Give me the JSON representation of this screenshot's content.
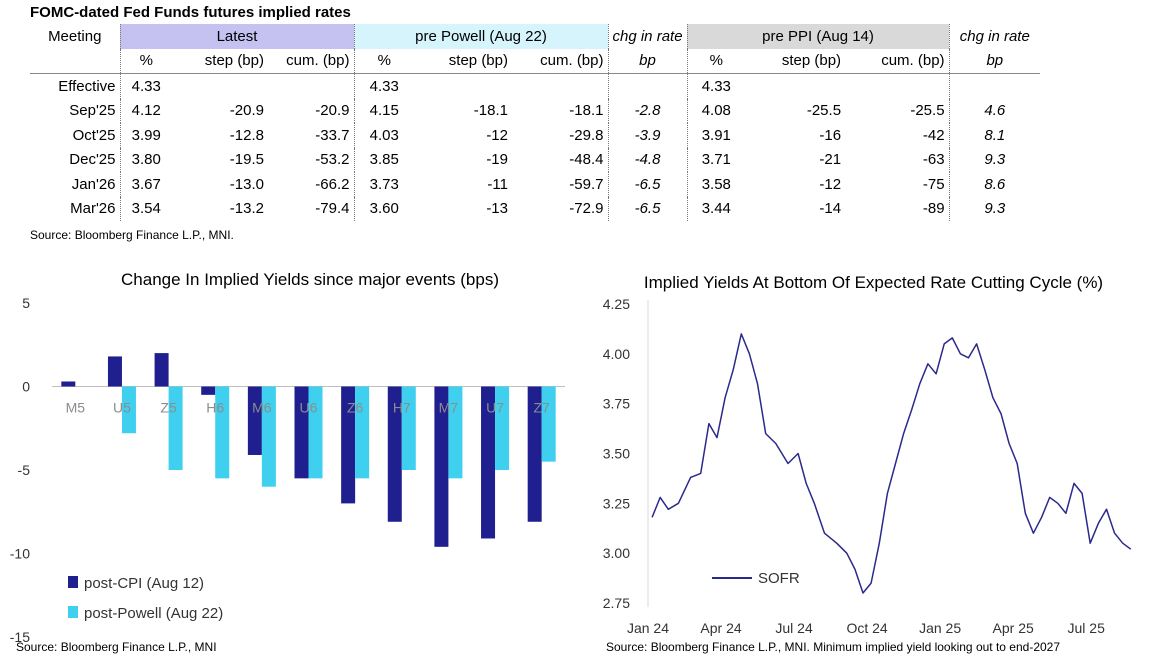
{
  "title": "FOMC-dated Fed Funds futures implied rates",
  "table": {
    "meeting_header": "Meeting",
    "group_latest": "Latest",
    "group_pre_powell": "pre Powell (Aug 22)",
    "group_chg1": "chg in rate",
    "group_pre_ppi": "pre PPI (Aug 14)",
    "group_chg2": "chg in rate",
    "sub_pct": "%",
    "sub_step": "step (bp)",
    "sub_cum": "cum. (bp)",
    "sub_bp": "bp",
    "rows": [
      {
        "meeting": "Effective",
        "l_pct": "4.33",
        "l_step": "",
        "l_cum": "",
        "p_pct": "4.33",
        "p_step": "",
        "p_cum": "",
        "chg1": "",
        "i_pct": "4.33",
        "i_step": "",
        "i_cum": "",
        "chg2": ""
      },
      {
        "meeting": "Sep'25",
        "l_pct": "4.12",
        "l_step": "-20.9",
        "l_cum": "-20.9",
        "p_pct": "4.15",
        "p_step": "-18.1",
        "p_cum": "-18.1",
        "chg1": "-2.8",
        "i_pct": "4.08",
        "i_step": "-25.5",
        "i_cum": "-25.5",
        "chg2": "4.6"
      },
      {
        "meeting": "Oct'25",
        "l_pct": "3.99",
        "l_step": "-12.8",
        "l_cum": "-33.7",
        "p_pct": "4.03",
        "p_step": "-12",
        "p_cum": "-29.8",
        "chg1": "-3.9",
        "i_pct": "3.91",
        "i_step": "-16",
        "i_cum": "-42",
        "chg2": "8.1"
      },
      {
        "meeting": "Dec'25",
        "l_pct": "3.80",
        "l_step": "-19.5",
        "l_cum": "-53.2",
        "p_pct": "3.85",
        "p_step": "-19",
        "p_cum": "-48.4",
        "chg1": "-4.8",
        "i_pct": "3.71",
        "i_step": "-21",
        "i_cum": "-63",
        "chg2": "9.3"
      },
      {
        "meeting": "Jan'26",
        "l_pct": "3.67",
        "l_step": "-13.0",
        "l_cum": "-66.2",
        "p_pct": "3.73",
        "p_step": "-11",
        "p_cum": "-59.7",
        "chg1": "-6.5",
        "i_pct": "3.58",
        "i_step": "-12",
        "i_cum": "-75",
        "chg2": "8.6"
      },
      {
        "meeting": "Mar'26",
        "l_pct": "3.54",
        "l_step": "-13.2",
        "l_cum": "-79.4",
        "p_pct": "3.60",
        "p_step": "-13",
        "p_cum": "-72.9",
        "chg1": "-6.5",
        "i_pct": "3.44",
        "i_step": "-14",
        "i_cum": "-89",
        "chg2": "9.3"
      }
    ]
  },
  "source_top": "Source: Bloomberg Finance L.P., MNI.",
  "source_left": "Source: Bloomberg Finance L.P., MNI",
  "source_right": "Source: Bloomberg Finance L.P., MNI. Minimum implied yield looking out to end-2027",
  "colors": {
    "cpi": "#1f1f8f",
    "powell": "#3ed0ee",
    "sofr": "#2a2a8c"
  },
  "chart_data": [
    {
      "type": "bar",
      "title": "Change In Implied Yields since major events (bps)",
      "categories": [
        "M5",
        "U5",
        "Z5",
        "H6",
        "M6",
        "U6",
        "Z6",
        "H7",
        "M7",
        "U7",
        "Z7"
      ],
      "series": [
        {
          "name": "post-CPI (Aug 12)",
          "values": [
            0.3,
            1.8,
            2.0,
            -0.5,
            -4.1,
            -5.5,
            -7.0,
            -8.1,
            -9.6,
            -9.1,
            -8.1
          ]
        },
        {
          "name": "post-Powell (Aug 22)",
          "values": [
            0.0,
            -2.8,
            -5.0,
            -5.5,
            -6.0,
            -5.5,
            -5.5,
            -5.0,
            -5.5,
            -5.0,
            -4.5
          ]
        }
      ],
      "ylim": [
        -15,
        5
      ],
      "yticks": [
        "5",
        "0",
        "-5",
        "-10",
        "-15"
      ],
      "legend_position": "bottom-left",
      "grid": false
    },
    {
      "type": "line",
      "title": "Implied Yields At Bottom Of Expected Rate Cutting Cycle (%)",
      "series": [
        {
          "name": "SOFR",
          "x": [
            "Jan 24",
            "Jan 24",
            "Jan 24",
            "Feb 24",
            "Feb 24",
            "Mar 24",
            "Mar 24",
            "Mar 24",
            "Apr 24",
            "Apr 24",
            "Apr 24",
            "May 24",
            "May 24",
            "May 24",
            "Jun 24",
            "Jun 24",
            "Jul 24",
            "Jul 24",
            "Jul 24",
            "Aug 24",
            "Aug 24",
            "Sep 24",
            "Sep 24",
            "Sep 24",
            "Oct 24",
            "Oct 24",
            "Oct 24",
            "Nov 24",
            "Nov 24",
            "Nov 24",
            "Dec 24",
            "Dec 24",
            "Dec 24",
            "Jan 25",
            "Jan 25",
            "Jan 25",
            "Feb 25",
            "Feb 25",
            "Feb 25",
            "Mar 25",
            "Mar 25",
            "Mar 25",
            "Apr 25",
            "Apr 25",
            "Apr 25",
            "May 25",
            "May 25",
            "May 25",
            "Jun 25",
            "Jun 25",
            "Jun 25",
            "Jul 25",
            "Jul 25",
            "Jul 25",
            "Aug 25",
            "Aug 25",
            "Aug 25"
          ],
          "y": [
            3.18,
            3.28,
            3.22,
            3.25,
            3.38,
            3.4,
            3.65,
            3.58,
            3.78,
            3.92,
            4.1,
            4.0,
            3.85,
            3.6,
            3.55,
            3.45,
            3.5,
            3.35,
            3.25,
            3.1,
            3.05,
            3.0,
            2.92,
            2.8,
            2.85,
            3.05,
            3.3,
            3.45,
            3.6,
            3.72,
            3.85,
            3.95,
            3.9,
            4.05,
            4.08,
            4.0,
            3.98,
            4.05,
            3.92,
            3.78,
            3.7,
            3.55,
            3.45,
            3.2,
            3.1,
            3.18,
            3.28,
            3.25,
            3.2,
            3.35,
            3.3,
            3.05,
            3.15,
            3.22,
            3.1,
            3.05,
            3.02
          ]
        }
      ],
      "x_ticks": [
        "Jan 24",
        "Apr 24",
        "Jul 24",
        "Oct 24",
        "Jan 25",
        "Apr 25",
        "Jul 25"
      ],
      "yticks": [
        "4.25",
        "4.00",
        "3.75",
        "3.50",
        "3.25",
        "3.00",
        "2.75"
      ],
      "ylim": [
        2.75,
        4.25
      ],
      "legend_position": "bottom-left",
      "grid": false
    }
  ]
}
